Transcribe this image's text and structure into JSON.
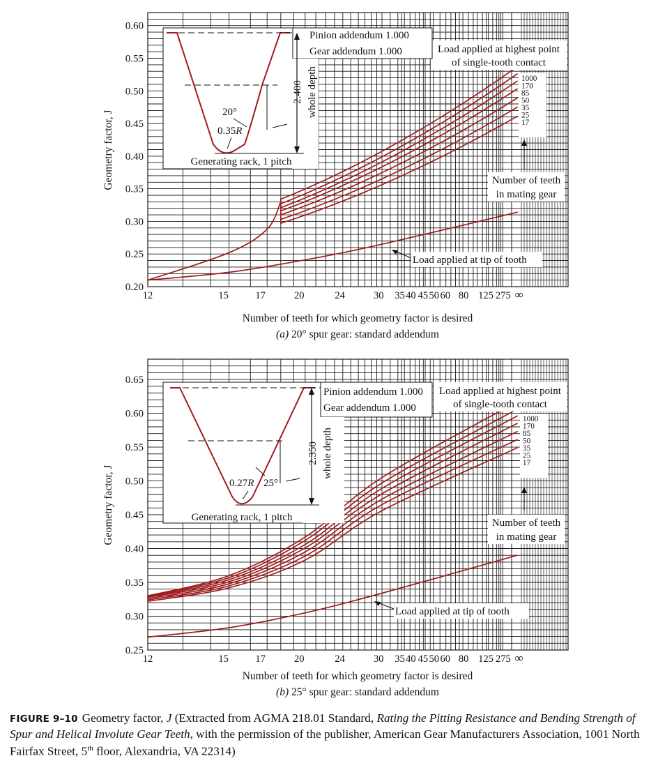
{
  "colors": {
    "curve": "#9e1b1e",
    "grid": "#1a1a1a",
    "text": "#111111",
    "background": "#ffffff"
  },
  "figure": {
    "label": "FIGURE 9–10",
    "caption_pre": "Geometry factor, ",
    "caption_j": "J",
    "caption_mid": " (Extracted from AGMA 218.01 Standard, ",
    "caption_title": "Rating the Pitting Resistance and Bending Strength of Spur and Helical Involute Gear Teeth",
    "caption_post": ", with the permission of the publisher, American Gear Manufacturers Association, 1001 North Fairfax Street, 5",
    "caption_sup": "th",
    "caption_end": " floor, Alexandria, VA 22314)"
  },
  "chart_data": [
    {
      "type": "line",
      "subtitle_prefix": "(a)",
      "subtitle": "20° spur gear: standard addendum",
      "xlabel": "Number of teeth for which geometry factor is desired",
      "ylabel": "Geometry factor, J",
      "xscale": "nonlinear (AGMA tooth-number scale)",
      "x_ticks": [
        "12",
        "15",
        "17",
        "20",
        "24",
        "30",
        "35",
        "40",
        "45",
        "50",
        "60",
        "80",
        "125",
        "275",
        "∞"
      ],
      "y_ticks": [
        "0.20",
        "0.25",
        "0.30",
        "0.35",
        "0.40",
        "0.45",
        "0.50",
        "0.55",
        "0.60"
      ],
      "ylim": [
        0.2,
        0.62
      ],
      "grid": true,
      "top_note": [
        "Load applied at highest point",
        "of single-tooth contact"
      ],
      "mating_note": [
        "Number of teeth",
        "in mating gear"
      ],
      "tip_note": "Load applied at tip of tooth",
      "series_labels": [
        "1000",
        "170",
        "85",
        "50",
        "35",
        "25",
        "17"
      ],
      "series": [
        {
          "name": "1000",
          "x": [
            "18",
            "∞"
          ],
          "y": [
            0.334,
            0.537
          ]
        },
        {
          "name": "170",
          "x": [
            "18",
            "∞"
          ],
          "y": [
            0.327,
            0.526
          ]
        },
        {
          "name": "85",
          "x": [
            "18",
            "∞"
          ],
          "y": [
            0.321,
            0.515
          ]
        },
        {
          "name": "50",
          "x": [
            "18",
            "∞"
          ],
          "y": [
            0.316,
            0.503
          ]
        },
        {
          "name": "35",
          "x": [
            "18",
            "∞"
          ],
          "y": [
            0.31,
            0.489
          ]
        },
        {
          "name": "25",
          "x": [
            "18",
            "∞"
          ],
          "y": [
            0.303,
            0.475
          ]
        },
        {
          "name": "17",
          "x": [
            "18",
            "∞"
          ],
          "y": [
            0.297,
            0.461
          ]
        },
        {
          "name": "Load applied at tip of tooth",
          "x": [
            "12",
            "15",
            "20",
            "30",
            "∞"
          ],
          "y": [
            0.21,
            0.222,
            0.241,
            0.265,
            0.314
          ]
        }
      ],
      "envelope": {
        "x": [
          "12",
          "15",
          "17",
          "18"
        ],
        "y": [
          0.21,
          0.252,
          0.288,
          0.33
        ]
      },
      "inset": {
        "pinion": "Pinion addendum 1.000",
        "gear": "Gear addendum 1.000",
        "depth": "2.400",
        "depth_label": "whole depth",
        "angle": "20°",
        "radius_num": "0.35",
        "radius_var": "R",
        "rack": "Generating rack, 1 pitch"
      }
    },
    {
      "type": "line",
      "subtitle_prefix": "(b)",
      "subtitle": "25° spur gear: standard addendum",
      "xlabel": "Number of teeth for which geometry factor is desired",
      "ylabel": "Geometry factor, J",
      "xscale": "nonlinear (AGMA tooth-number scale)",
      "x_ticks": [
        "12",
        "15",
        "17",
        "20",
        "24",
        "30",
        "35",
        "40",
        "45",
        "50",
        "60",
        "80",
        "125",
        "275",
        "∞"
      ],
      "y_ticks": [
        "0.25",
        "0.30",
        "0.35",
        "0.40",
        "0.45",
        "0.50",
        "0.55",
        "0.60",
        "0.65"
      ],
      "ylim": [
        0.25,
        0.68
      ],
      "grid": true,
      "top_note": [
        "Load applied at highest point",
        "of single-tooth contact"
      ],
      "mating_note": [
        "Number of teeth",
        "in mating gear"
      ],
      "tip_note": "Load applied at tip of tooth",
      "series_labels": [
        "1000",
        "170",
        "85",
        "50",
        "35",
        "25",
        "17"
      ],
      "series": [
        {
          "name": "1000",
          "x": [
            "12",
            "15",
            "20",
            "30",
            "∞"
          ],
          "y": [
            0.33,
            0.36,
            0.417,
            0.505,
            0.617
          ]
        },
        {
          "name": "170",
          "x": [
            "12",
            "15",
            "20",
            "30",
            "∞"
          ],
          "y": [
            0.33,
            0.357,
            0.412,
            0.497,
            0.606
          ]
        },
        {
          "name": "85",
          "x": [
            "12",
            "15",
            "20",
            "30",
            "∞"
          ],
          "y": [
            0.329,
            0.354,
            0.406,
            0.489,
            0.596
          ]
        },
        {
          "name": "50",
          "x": [
            "12",
            "15",
            "20",
            "30",
            "∞"
          ],
          "y": [
            0.328,
            0.351,
            0.401,
            0.481,
            0.585
          ]
        },
        {
          "name": "35",
          "x": [
            "12",
            "15",
            "20",
            "30",
            "∞"
          ],
          "y": [
            0.326,
            0.348,
            0.395,
            0.473,
            0.573
          ]
        },
        {
          "name": "25",
          "x": [
            "12",
            "15",
            "20",
            "30",
            "∞"
          ],
          "y": [
            0.324,
            0.345,
            0.389,
            0.465,
            0.561
          ]
        },
        {
          "name": "17",
          "x": [
            "12",
            "15",
            "20",
            "30",
            "∞"
          ],
          "y": [
            0.322,
            0.342,
            0.383,
            0.456,
            0.549
          ]
        },
        {
          "name": "Load applied at tip of tooth",
          "x": [
            "12",
            "15",
            "20",
            "30",
            "∞"
          ],
          "y": [
            0.269,
            0.283,
            0.305,
            0.334,
            0.39
          ]
        }
      ],
      "inset": {
        "pinion": "Pinion addendum 1.000",
        "gear": "Gear addendum 1.000",
        "depth": "2.350",
        "depth_label": "whole depth",
        "angle": "25°",
        "radius_num": "0.27",
        "radius_var": "R",
        "rack": "Generating rack, 1 pitch"
      }
    }
  ]
}
